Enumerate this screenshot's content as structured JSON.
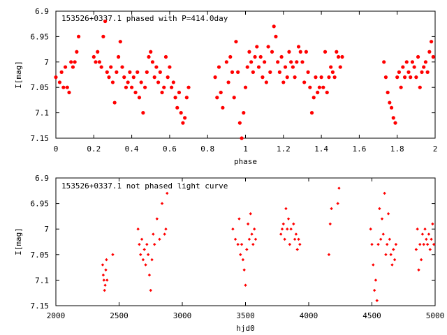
{
  "chart_data": [
    {
      "type": "scatter",
      "title": "153526+0337.1 phased with P=414.0day",
      "xlabel": "phase",
      "ylabel": "I[mag]",
      "xlim": [
        0,
        2
      ],
      "ylim": [
        6.9,
        7.15
      ],
      "y_inverted": true,
      "x_ticks": [
        "0",
        "0.2",
        "0.4",
        "0.6",
        "0.8",
        "1",
        "1.2",
        "1.4",
        "1.6",
        "1.8",
        "2"
      ],
      "x_tick_values": [
        0,
        0.2,
        0.4,
        0.6,
        0.8,
        1.0,
        1.2,
        1.4,
        1.6,
        1.8,
        2.0
      ],
      "y_ticks": [
        "6.9",
        "6.95",
        "7",
        "7.05",
        "7.1",
        "7.15"
      ],
      "y_tick_values": [
        6.9,
        6.95,
        7.0,
        7.05,
        7.1,
        7.15
      ],
      "grid": false,
      "marker": "star",
      "color": "#ff0000",
      "points": [
        [
          0.0,
          7.03
        ],
        [
          0.02,
          7.04
        ],
        [
          0.03,
          7.02
        ],
        [
          0.04,
          7.05
        ],
        [
          0.05,
          7.01
        ],
        [
          0.06,
          7.05
        ],
        [
          0.07,
          7.06
        ],
        [
          0.08,
          7.0
        ],
        [
          0.09,
          7.01
        ],
        [
          0.1,
          7.0
        ],
        [
          0.11,
          6.98
        ],
        [
          0.12,
          6.95
        ],
        [
          0.2,
          6.99
        ],
        [
          0.21,
          7.0
        ],
        [
          0.22,
          6.98
        ],
        [
          0.23,
          7.0
        ],
        [
          0.24,
          7.01
        ],
        [
          0.25,
          6.95
        ],
        [
          0.26,
          6.92
        ],
        [
          0.27,
          7.02
        ],
        [
          0.28,
          7.03
        ],
        [
          0.29,
          7.01
        ],
        [
          0.3,
          7.04
        ],
        [
          0.31,
          7.08
        ],
        [
          0.32,
          7.02
        ],
        [
          0.33,
          6.99
        ],
        [
          0.34,
          6.96
        ],
        [
          0.35,
          7.01
        ],
        [
          0.36,
          7.03
        ],
        [
          0.37,
          7.05
        ],
        [
          0.38,
          7.04
        ],
        [
          0.39,
          7.02
        ],
        [
          0.4,
          7.05
        ],
        [
          0.41,
          7.03
        ],
        [
          0.42,
          7.06
        ],
        [
          0.43,
          7.02
        ],
        [
          0.44,
          7.07
        ],
        [
          0.45,
          7.04
        ],
        [
          0.46,
          7.1
        ],
        [
          0.47,
          7.05
        ],
        [
          0.48,
          7.02
        ],
        [
          0.49,
          6.99
        ],
        [
          0.5,
          6.98
        ],
        [
          0.51,
          7.0
        ],
        [
          0.52,
          7.03
        ],
        [
          0.53,
          7.01
        ],
        [
          0.54,
          7.04
        ],
        [
          0.55,
          7.02
        ],
        [
          0.56,
          7.06
        ],
        [
          0.57,
          7.05
        ],
        [
          0.58,
          6.99
        ],
        [
          0.59,
          7.03
        ],
        [
          0.6,
          7.01
        ],
        [
          0.61,
          7.05
        ],
        [
          0.62,
          7.04
        ],
        [
          0.63,
          7.07
        ],
        [
          0.64,
          7.09
        ],
        [
          0.65,
          7.06
        ],
        [
          0.66,
          7.1
        ],
        [
          0.67,
          7.12
        ],
        [
          0.68,
          7.11
        ],
        [
          0.69,
          7.07
        ],
        [
          0.7,
          7.05
        ],
        [
          0.84,
          7.03
        ],
        [
          0.85,
          7.07
        ],
        [
          0.86,
          7.01
        ],
        [
          0.87,
          7.06
        ],
        [
          0.88,
          7.09
        ],
        [
          0.9,
          7.0
        ],
        [
          0.91,
          7.04
        ],
        [
          0.92,
          6.99
        ],
        [
          0.93,
          7.02
        ],
        [
          0.94,
          7.07
        ],
        [
          0.95,
          6.96
        ],
        [
          0.96,
          7.02
        ],
        [
          0.97,
          7.12
        ],
        [
          0.98,
          7.15
        ],
        [
          0.99,
          7.1
        ],
        [
          1.0,
          7.05
        ],
        [
          1.01,
          7.01
        ],
        [
          1.02,
          6.98
        ],
        [
          1.03,
          7.0
        ],
        [
          1.04,
          7.02
        ],
        [
          1.05,
          6.99
        ],
        [
          1.06,
          6.97
        ],
        [
          1.07,
          7.01
        ],
        [
          1.08,
          6.99
        ],
        [
          1.09,
          7.03
        ],
        [
          1.1,
          7.0
        ],
        [
          1.11,
          7.04
        ],
        [
          1.12,
          6.97
        ],
        [
          1.13,
          7.02
        ],
        [
          1.14,
          6.98
        ],
        [
          1.15,
          6.93
        ],
        [
          1.16,
          6.95
        ],
        [
          1.17,
          7.0
        ],
        [
          1.18,
          7.02
        ],
        [
          1.19,
          6.99
        ],
        [
          1.2,
          7.04
        ],
        [
          1.21,
          7.01
        ],
        [
          1.22,
          7.03
        ],
        [
          1.23,
          6.98
        ],
        [
          1.24,
          7.0
        ],
        [
          1.25,
          7.01
        ],
        [
          1.26,
          7.03
        ],
        [
          1.27,
          7.0
        ],
        [
          1.28,
          6.97
        ],
        [
          1.29,
          6.98
        ],
        [
          1.3,
          7.0
        ],
        [
          1.31,
          7.04
        ],
        [
          1.32,
          6.98
        ],
        [
          1.33,
          7.02
        ],
        [
          1.34,
          7.05
        ],
        [
          1.35,
          7.1
        ],
        [
          1.36,
          7.07
        ],
        [
          1.37,
          7.03
        ],
        [
          1.38,
          7.06
        ],
        [
          1.39,
          7.05
        ],
        [
          1.4,
          7.03
        ],
        [
          1.41,
          7.05
        ],
        [
          1.42,
          6.98
        ],
        [
          1.43,
          7.06
        ],
        [
          1.44,
          7.03
        ],
        [
          1.45,
          7.01
        ],
        [
          1.46,
          7.02
        ],
        [
          1.47,
          7.03
        ],
        [
          1.48,
          6.98
        ],
        [
          1.49,
          6.99
        ],
        [
          1.5,
          7.01
        ],
        [
          1.51,
          6.99
        ],
        [
          1.73,
          7.0
        ],
        [
          1.74,
          7.03
        ],
        [
          1.75,
          7.06
        ],
        [
          1.76,
          7.08
        ],
        [
          1.77,
          7.09
        ],
        [
          1.78,
          7.11
        ],
        [
          1.79,
          7.12
        ],
        [
          1.8,
          7.03
        ],
        [
          1.81,
          7.02
        ],
        [
          1.82,
          7.05
        ],
        [
          1.83,
          7.01
        ],
        [
          1.84,
          7.03
        ],
        [
          1.85,
          7.0
        ],
        [
          1.86,
          7.02
        ],
        [
          1.87,
          7.03
        ],
        [
          1.88,
          7.0
        ],
        [
          1.89,
          7.01
        ],
        [
          1.9,
          7.03
        ],
        [
          1.91,
          6.99
        ],
        [
          1.92,
          7.05
        ],
        [
          1.93,
          7.02
        ],
        [
          1.94,
          7.01
        ],
        [
          1.95,
          7.0
        ],
        [
          1.96,
          7.02
        ],
        [
          1.97,
          6.98
        ],
        [
          1.98,
          6.96
        ],
        [
          1.99,
          6.99
        ]
      ]
    },
    {
      "type": "scatter",
      "title": "153526+0337.1 not phased light curve",
      "xlabel": "hjd0",
      "ylabel": "I[mag]",
      "xlim": [
        2000,
        5000
      ],
      "ylim": [
        6.9,
        7.15
      ],
      "y_inverted": true,
      "x_ticks": [
        "2000",
        "2500",
        "3000",
        "3500",
        "4000",
        "4500",
        "5000"
      ],
      "x_tick_values": [
        2000,
        2500,
        3000,
        3500,
        4000,
        4500,
        5000
      ],
      "y_ticks": [
        "6.9",
        "6.95",
        "7",
        "7.05",
        "7.1",
        "7.15"
      ],
      "y_tick_values": [
        6.9,
        6.95,
        7.0,
        7.05,
        7.1,
        7.15
      ],
      "grid": false,
      "marker": "diamond",
      "color": "#ff0000",
      "points": [
        [
          2370,
          7.07
        ],
        [
          2375,
          7.09
        ],
        [
          2380,
          7.1
        ],
        [
          2385,
          7.12
        ],
        [
          2390,
          7.11
        ],
        [
          2395,
          7.08
        ],
        [
          2400,
          7.06
        ],
        [
          2405,
          7.1
        ],
        [
          2450,
          7.05
        ],
        [
          2650,
          7.0
        ],
        [
          2660,
          7.03
        ],
        [
          2670,
          7.05
        ],
        [
          2680,
          7.02
        ],
        [
          2690,
          7.06
        ],
        [
          2700,
          7.04
        ],
        [
          2710,
          7.07
        ],
        [
          2720,
          7.03
        ],
        [
          2730,
          7.05
        ],
        [
          2740,
          7.09
        ],
        [
          2750,
          7.12
        ],
        [
          2760,
          7.06
        ],
        [
          2770,
          7.01
        ],
        [
          2780,
          7.03
        ],
        [
          2800,
          6.98
        ],
        [
          2820,
          7.02
        ],
        [
          2840,
          6.95
        ],
        [
          2860,
          7.01
        ],
        [
          2870,
          7.0
        ],
        [
          2880,
          6.93
        ],
        [
          3400,
          7.0
        ],
        [
          3420,
          7.02
        ],
        [
          3440,
          7.03
        ],
        [
          3450,
          6.98
        ],
        [
          3460,
          7.05
        ],
        [
          3470,
          7.03
        ],
        [
          3480,
          7.06
        ],
        [
          3490,
          7.08
        ],
        [
          3500,
          7.11
        ],
        [
          3510,
          7.04
        ],
        [
          3520,
          6.99
        ],
        [
          3530,
          7.02
        ],
        [
          3540,
          6.97
        ],
        [
          3550,
          7.01
        ],
        [
          3560,
          7.03
        ],
        [
          3570,
          7.0
        ],
        [
          3580,
          7.02
        ],
        [
          3780,
          7.01
        ],
        [
          3790,
          7.0
        ],
        [
          3800,
          6.99
        ],
        [
          3810,
          7.02
        ],
        [
          3820,
          6.96
        ],
        [
          3830,
          7.0
        ],
        [
          3840,
          6.98
        ],
        [
          3850,
          7.03
        ],
        [
          3860,
          7.0
        ],
        [
          3880,
          6.99
        ],
        [
          3890,
          7.02
        ],
        [
          3900,
          7.01
        ],
        [
          3910,
          7.04
        ],
        [
          3920,
          7.02
        ],
        [
          3930,
          7.03
        ],
        [
          4160,
          7.05
        ],
        [
          4170,
          6.99
        ],
        [
          4180,
          6.96
        ],
        [
          4230,
          6.95
        ],
        [
          4240,
          6.92
        ],
        [
          4490,
          7.0
        ],
        [
          4500,
          7.03
        ],
        [
          4510,
          7.07
        ],
        [
          4520,
          7.12
        ],
        [
          4530,
          7.1
        ],
        [
          4540,
          7.14
        ],
        [
          4550,
          7.03
        ],
        [
          4560,
          6.96
        ],
        [
          4570,
          7.02
        ],
        [
          4580,
          6.98
        ],
        [
          4590,
          7.01
        ],
        [
          4600,
          6.93
        ],
        [
          4610,
          7.05
        ],
        [
          4620,
          7.03
        ],
        [
          4630,
          6.97
        ],
        [
          4640,
          7.02
        ],
        [
          4650,
          7.05
        ],
        [
          4660,
          7.07
        ],
        [
          4670,
          7.04
        ],
        [
          4680,
          7.06
        ],
        [
          4690,
          7.03
        ],
        [
          4850,
          7.04
        ],
        [
          4860,
          7.0
        ],
        [
          4870,
          7.08
        ],
        [
          4880,
          7.03
        ],
        [
          4890,
          7.06
        ],
        [
          4900,
          7.01
        ],
        [
          4910,
          7.03
        ],
        [
          4920,
          7.0
        ],
        [
          4930,
          7.02
        ],
        [
          4940,
          7.03
        ],
        [
          4950,
          7.01
        ],
        [
          4960,
          7.04
        ],
        [
          4970,
          7.02
        ],
        [
          4980,
          6.99
        ],
        [
          4990,
          7.03
        ]
      ]
    }
  ]
}
